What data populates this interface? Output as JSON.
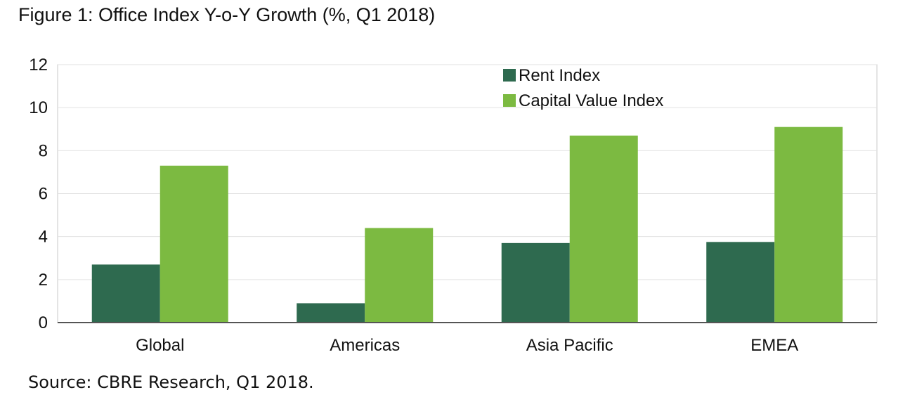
{
  "title": "Figure 1: Office Index Y-o-Y Growth (%, Q1 2018)",
  "source": "Source: CBRE Research, Q1 2018.",
  "chart_data": {
    "type": "bar",
    "categories": [
      "Global",
      "Americas",
      "Asia Pacific",
      "EMEA"
    ],
    "series": [
      {
        "name": "Rent Index",
        "color": "#2e6a4f",
        "values": [
          2.7,
          0.9,
          3.7,
          3.75
        ]
      },
      {
        "name": "Capital Value Index",
        "color": "#7cba41",
        "values": [
          7.3,
          4.4,
          8.7,
          9.1
        ]
      }
    ],
    "ylim": [
      0,
      12
    ],
    "yticks": [
      0,
      2,
      4,
      6,
      8,
      10,
      12
    ],
    "grid": true,
    "legend": "top-center",
    "xlabel": "",
    "ylabel": ""
  }
}
